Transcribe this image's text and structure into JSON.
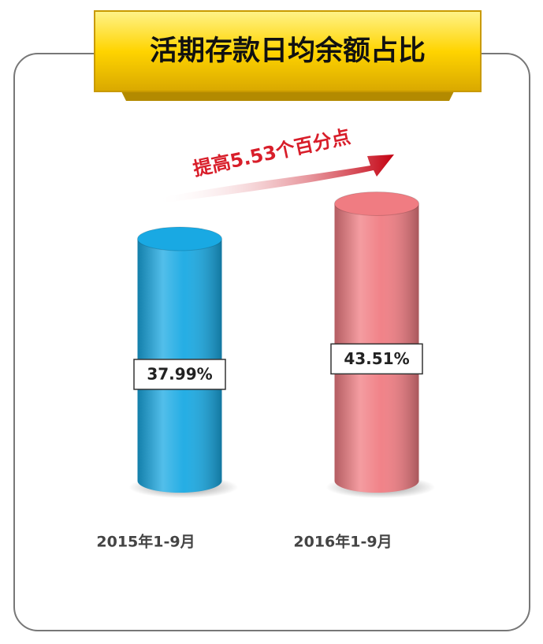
{
  "chart_data": {
    "type": "bar",
    "title": "活期存款日均余额占比",
    "annotation": "提高5.53个百分点",
    "categories": [
      "2015年1-9月",
      "2016年1-9月"
    ],
    "values": [
      37.99,
      43.51
    ],
    "value_labels": [
      "37.99%",
      "43.51%"
    ],
    "colors": [
      "#19a9e3",
      "#f07c82"
    ]
  }
}
